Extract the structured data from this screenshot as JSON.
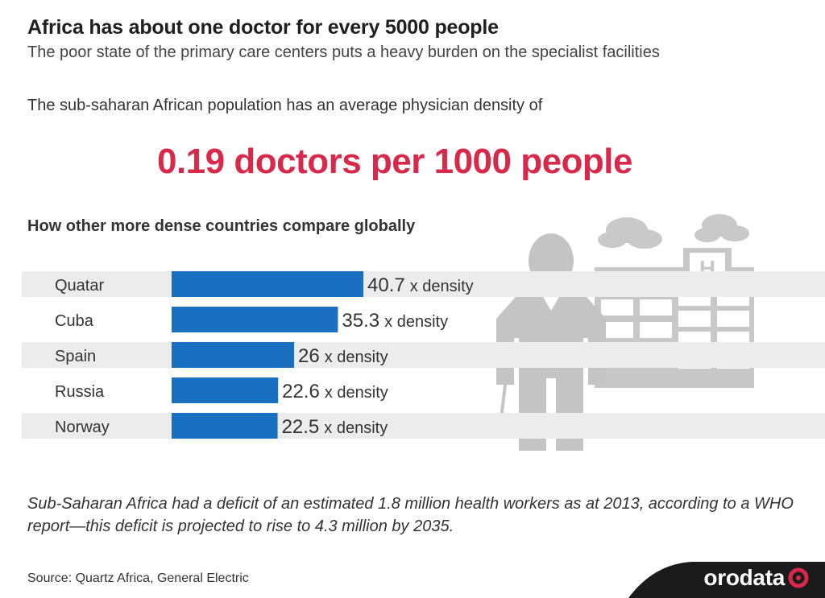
{
  "title": "Africa has about one doctor for every 5000 people",
  "subtitle": "The poor state of the primary care centers puts a heavy burden on the specialist facilities",
  "intro": "The sub-saharan African population has an average physician density of",
  "headline": "0.19 doctors per 1000 people",
  "section_title": "How other more dense countries compare globally",
  "value_suffix": "x density",
  "chart_data": {
    "type": "bar",
    "orientation": "horizontal",
    "categories": [
      "Quatar",
      "Cuba",
      "Spain",
      "Russia",
      "Norway"
    ],
    "values": [
      40.7,
      35.3,
      26,
      22.6,
      22.5
    ],
    "value_labels": [
      "40.7",
      "35.3",
      "26",
      "22.6",
      "22.5"
    ],
    "title": "How other more dense countries compare globally",
    "xlabel": "",
    "ylabel": "",
    "grid": false,
    "bar_color": "#1a6fc0",
    "alt_row_color": "#ececec"
  },
  "note": "Sub-Saharan Africa had a deficit of an estimated 1.8 million health workers as at 2013, according to a WHO report—this deficit is projected to rise to 4.3 million by 2035.",
  "source": "Source: Quartz Africa, General Electric",
  "brand": {
    "logo_text": "orodata",
    "accent_color": "#d8294b",
    "icon": "orodata-logo-icon"
  },
  "illustration": {
    "icons": [
      "doctor-icon",
      "hospital-icon",
      "cloud-icon",
      "stethoscope-icon"
    ],
    "hospital_sign": "H",
    "color": "#c4c4c4"
  }
}
